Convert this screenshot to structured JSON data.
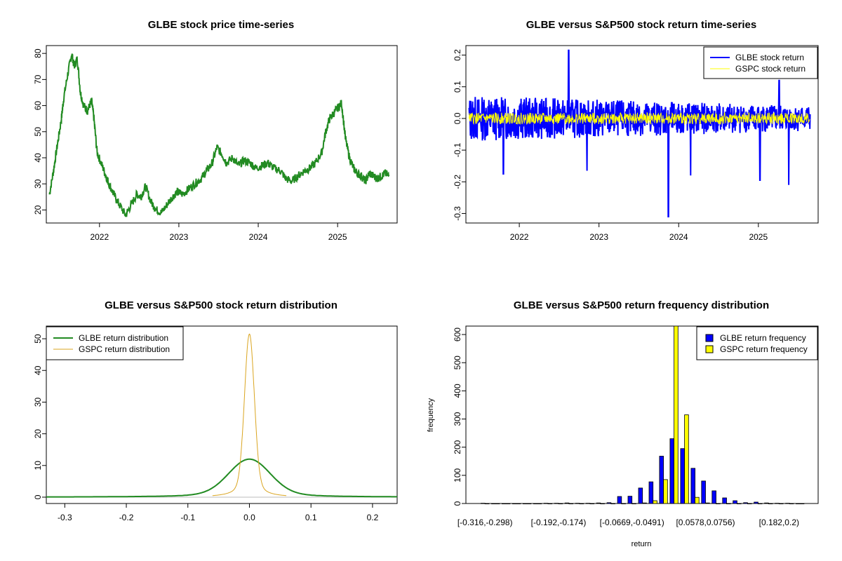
{
  "colors": {
    "glbe_price": "#228B22",
    "glbe_return": "#0000FF",
    "gspc_return": "#FFFF00",
    "glbe_density": "#228B22",
    "gspc_density": "#DAA520",
    "glbe_hist": "#0000FF",
    "gspc_hist": "#FFFF00"
  },
  "chart_data": [
    {
      "id": "price",
      "type": "line",
      "title": "GLBE stock price time-series",
      "xlabel": "",
      "ylabel": "",
      "xlim": [
        2021.33,
        2025.75
      ],
      "ylim": [
        15,
        83
      ],
      "xticks": [
        2022,
        2023,
        2024,
        2025
      ],
      "xtick_labels": [
        "2022",
        "2023",
        "2024",
        "2025"
      ],
      "yticks": [
        20,
        30,
        40,
        50,
        60,
        70,
        80
      ],
      "ytick_labels": [
        "20",
        "30",
        "40",
        "50",
        "60",
        "70",
        "80"
      ],
      "grid": false,
      "series": [
        {
          "x": [
            2021.37,
            2021.42,
            2021.47,
            2021.52,
            2021.55,
            2021.6,
            2021.65,
            2021.68,
            2021.72,
            2021.76,
            2021.8,
            2021.85,
            2021.9,
            2021.93,
            2021.97,
            2022.02,
            2022.07,
            2022.12,
            2022.18,
            2022.25,
            2022.33,
            2022.4,
            2022.47,
            2022.52,
            2022.58,
            2022.65,
            2022.72,
            2022.78,
            2022.85,
            2022.92,
            2022.98,
            2023.05,
            2023.12,
            2023.2,
            2023.28,
            2023.35,
            2023.42,
            2023.48,
            2023.55,
            2023.6,
            2023.68,
            2023.75,
            2023.82,
            2023.9,
            2023.97,
            2024.05,
            2024.12,
            2024.2,
            2024.28,
            2024.35,
            2024.42,
            2024.5,
            2024.58,
            2024.65,
            2024.72,
            2024.8,
            2024.85,
            2024.9,
            2024.95,
            2025.0,
            2025.05,
            2025.1,
            2025.15,
            2025.2,
            2025.25,
            2025.3,
            2025.35,
            2025.4,
            2025.45,
            2025.5,
            2025.55,
            2025.6,
            2025.65
          ],
          "y": [
            26,
            35,
            45,
            55,
            63,
            72,
            80,
            75,
            78,
            65,
            60,
            58,
            62,
            55,
            42,
            38,
            34,
            30,
            26,
            22,
            18,
            22,
            26,
            25,
            29,
            23,
            20,
            19,
            22,
            25,
            27,
            26,
            28,
            30,
            32,
            35,
            38,
            44,
            41,
            38,
            40,
            37,
            39,
            38,
            36,
            37,
            38,
            36,
            35,
            32,
            31,
            33,
            35,
            36,
            38,
            42,
            50,
            55,
            57,
            59,
            61,
            47,
            40,
            36,
            34,
            33,
            31,
            34,
            33,
            32,
            33,
            34,
            33
          ]
        }
      ]
    },
    {
      "id": "returns",
      "type": "line",
      "title": "GLBE versus S&P500 stock return time-series",
      "xlabel": "",
      "ylabel": "",
      "xlim": [
        2021.33,
        2025.75
      ],
      "ylim": [
        -0.33,
        0.23
      ],
      "xticks": [
        2022,
        2023,
        2024,
        2025
      ],
      "xtick_labels": [
        "2022",
        "2023",
        "2024",
        "2025"
      ],
      "yticks": [
        -0.3,
        -0.2,
        -0.1,
        0.0,
        0.1,
        0.2
      ],
      "ytick_labels": [
        "-0.3",
        "-0.2",
        "-0.1",
        "0.0",
        "0.1",
        "0.2"
      ],
      "grid": false,
      "legend_position": "top-right",
      "series": [
        {
          "name": "GLBE stock return",
          "amp": 0.06,
          "spikes": [
            [
              2021.8,
              -0.175
            ],
            [
              2022.62,
              0.215
            ],
            [
              2022.85,
              -0.165
            ],
            [
              2023.87,
              -0.31
            ],
            [
              2024.15,
              -0.18
            ],
            [
              2025.02,
              -0.195
            ],
            [
              2025.38,
              -0.21
            ],
            [
              2025.26,
              0.12
            ]
          ]
        },
        {
          "name": "GSPC stock return",
          "amp": 0.018,
          "spikes": []
        }
      ]
    },
    {
      "id": "density",
      "type": "line",
      "title": "GLBE versus S&P500 stock return distribution",
      "xlabel": "",
      "ylabel": "",
      "xlim": [
        -0.33,
        0.24
      ],
      "ylim": [
        -2,
        54
      ],
      "xticks": [
        -0.3,
        -0.2,
        -0.1,
        0.0,
        0.1,
        0.2
      ],
      "xtick_labels": [
        "-0.3",
        "-0.2",
        "-0.1",
        "0.0",
        "0.1",
        "0.2"
      ],
      "yticks": [
        0,
        10,
        20,
        30,
        40,
        50
      ],
      "ytick_labels": [
        "0",
        "10",
        "20",
        "30",
        "40",
        "50"
      ],
      "grid": false,
      "legend_position": "top-left",
      "series": [
        {
          "name": "GLBE return distribution",
          "mean": 0.0,
          "sd": 0.033,
          "peak": 12,
          "range": [
            -0.33,
            0.24
          ]
        },
        {
          "name": "GSPC return distribution",
          "mean": 0.0,
          "sd": 0.0078,
          "peak": 51.5,
          "range": [
            -0.06,
            0.06
          ]
        }
      ]
    },
    {
      "id": "hist",
      "type": "bar",
      "title": "GLBE versus S&P500 return frequency distribution",
      "xlabel": "return",
      "ylabel": "frequency",
      "ylim": [
        0,
        630
      ],
      "yticks": [
        0,
        100,
        200,
        300,
        400,
        500,
        600
      ],
      "ytick_labels": [
        "0",
        "100",
        "200",
        "300",
        "400",
        "500",
        "600"
      ],
      "xtick_labels": [
        "[-0.316,-0.298)",
        "[-0.192,-0.174)",
        "[-0.0669,-0.0491)",
        "[0.0578,0.0756)",
        "[0.182,0.2)"
      ],
      "xtick_bins": [
        0,
        7,
        14,
        21,
        28
      ],
      "grid": false,
      "legend_position": "top-right",
      "series": [
        {
          "name": "GLBE return frequency",
          "values": [
            1,
            0,
            0,
            0,
            0,
            0,
            1,
            1,
            2,
            1,
            1,
            2,
            3,
            25,
            26,
            55,
            77,
            168,
            230,
            195,
            125,
            80,
            45,
            20,
            10,
            3,
            5,
            2,
            1,
            1,
            0
          ]
        },
        {
          "name": "GSPC return frequency",
          "values": [
            0,
            0,
            0,
            0,
            0,
            0,
            0,
            0,
            0,
            0,
            0,
            0,
            0,
            0,
            0,
            2,
            10,
            85,
            640,
            315,
            22,
            2,
            0,
            0,
            0,
            0,
            0,
            0,
            0,
            0,
            0
          ]
        }
      ]
    }
  ]
}
